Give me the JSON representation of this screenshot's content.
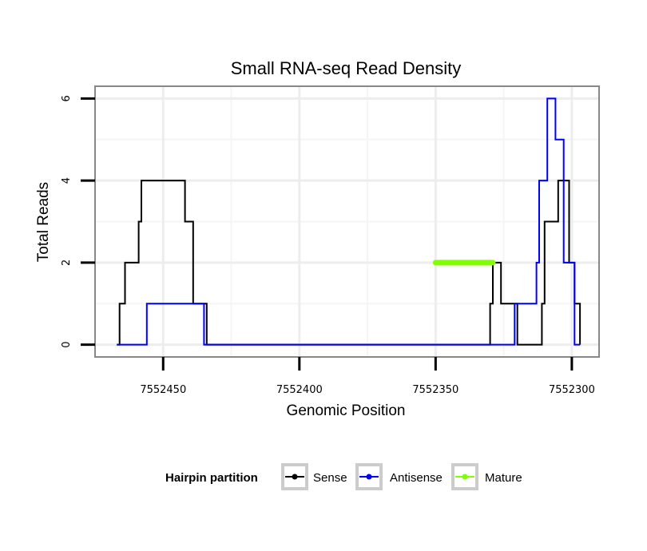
{
  "chart_data": {
    "type": "line",
    "title": "Small RNA-seq Read Density",
    "xlabel": "Genomic Position",
    "ylabel": "Total Reads",
    "xlim": [
      7552475,
      7552290
    ],
    "x_reversed": true,
    "ylim": [
      -0.3,
      6.3
    ],
    "xticks": [
      7552450,
      7552400,
      7552350,
      7552300
    ],
    "xtick_labels": [
      "7552450",
      "7552400",
      "7552350",
      "7552300"
    ],
    "yticks": [
      0,
      2,
      4,
      6
    ],
    "ytick_labels": [
      "0",
      "2",
      "4",
      "6"
    ],
    "grid": true,
    "legend_title": "Hairpin partition",
    "legend_position": "bottom",
    "series": [
      {
        "name": "Sense",
        "color": "#000000",
        "x": [
          7552467,
          7552466,
          7552466,
          7552464,
          7552464,
          7552459,
          7552459,
          7552458,
          7552458,
          7552456,
          7552456,
          7552442,
          7552442,
          7552439,
          7552439,
          7552434,
          7552434,
          7552432,
          7552432,
          7552330,
          7552330,
          7552329,
          7552329,
          7552327,
          7552327,
          7552326,
          7552326,
          7552320,
          7552320,
          7552311,
          7552311,
          7552310,
          7552310,
          7552305,
          7552305,
          7552302,
          7552302,
          7552301,
          7552301,
          7552299,
          7552299,
          7552298,
          7552298,
          7552297,
          7552297
        ],
        "values": [
          0,
          0,
          1,
          1,
          2,
          2,
          3,
          3,
          4,
          4,
          4,
          4,
          3,
          3,
          1,
          1,
          0,
          0,
          0,
          0,
          1,
          1,
          2,
          2,
          2,
          2,
          1,
          1,
          0,
          0,
          1,
          1,
          3,
          3,
          4,
          4,
          4,
          4,
          2,
          2,
          1,
          1,
          1,
          1,
          0
        ]
      },
      {
        "name": "Antisense",
        "color": "#0000ff",
        "x": [
          7552467,
          7552456,
          7552456,
          7552435,
          7552435,
          7552330,
          7552330,
          7552321,
          7552321,
          7552313,
          7552313,
          7552312,
          7552312,
          7552309,
          7552309,
          7552306,
          7552306,
          7552303,
          7552303,
          7552299,
          7552299,
          7552297
        ],
        "values": [
          0,
          0,
          1,
          1,
          0,
          0,
          0,
          0,
          1,
          1,
          2,
          2,
          4,
          4,
          6,
          6,
          5,
          5,
          2,
          2,
          0,
          0
        ]
      },
      {
        "name": "Mature",
        "color": "#7fff00",
        "x": [
          7552350,
          7552329
        ],
        "values": [
          2,
          2
        ]
      }
    ]
  }
}
